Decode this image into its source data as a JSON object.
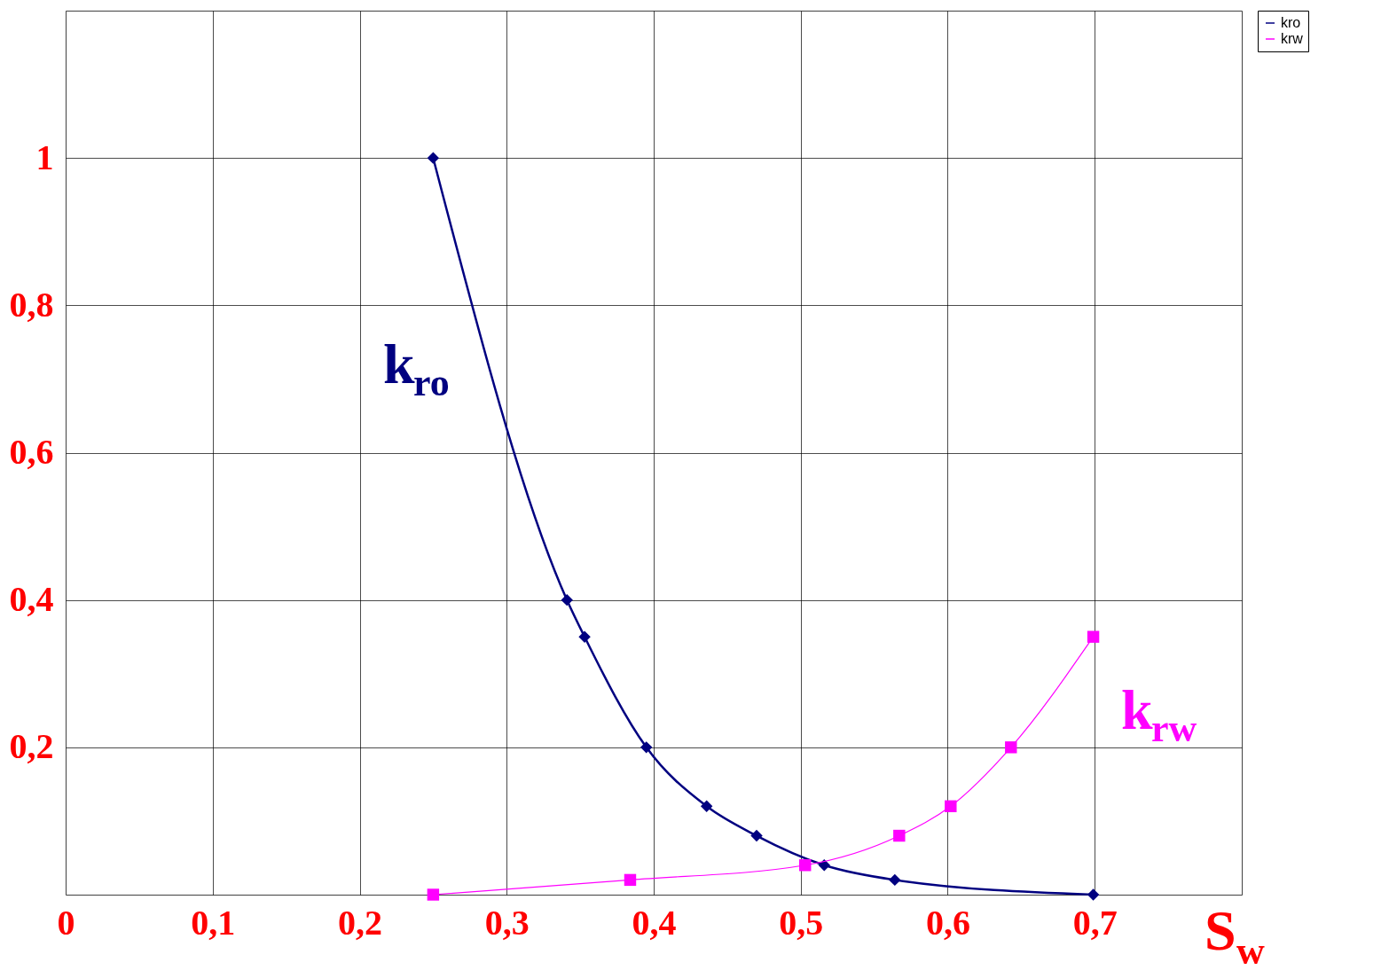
{
  "chart_data": {
    "type": "line",
    "xlabel": "S$_{w}$",
    "xlim": [
      0,
      0.8
    ],
    "xticks": [
      {
        "value": 0,
        "label": "0"
      },
      {
        "value": 0.1,
        "label": "0,1"
      },
      {
        "value": 0.2,
        "label": "0,2"
      },
      {
        "value": 0.3,
        "label": "0,3"
      },
      {
        "value": 0.4,
        "label": "0,4"
      },
      {
        "value": 0.5,
        "label": "0,5"
      },
      {
        "value": 0.6,
        "label": "0,6"
      },
      {
        "value": 0.7,
        "label": "0,7"
      },
      {
        "value": 0.8,
        "label": null
      }
    ],
    "ylim": [
      0,
      1.2
    ],
    "yticks": [
      {
        "value": 0,
        "label": null
      },
      {
        "value": 0.2,
        "label": "0,2"
      },
      {
        "value": 0.4,
        "label": "0,4"
      },
      {
        "value": 0.6,
        "label": "0,6"
      },
      {
        "value": 0.8,
        "label": "0,8"
      },
      1,
      {
        "value": 1.2,
        "label": null
      }
    ],
    "grid": true,
    "legend": "right",
    "series": [
      {
        "name": "kro",
        "color": "#000080",
        "marker": "diamond",
        "x": [
          0.25,
          0.341,
          0.353,
          0.395,
          0.436,
          0.47,
          0.516,
          0.564,
          0.699
        ],
        "values": [
          1,
          0.4,
          0.35,
          0.2,
          0.12,
          0.08,
          0.04,
          0.02,
          0
        ]
      },
      {
        "name": "krw",
        "color": "#ff00ff",
        "marker": "square",
        "x": [
          0.25,
          0.384,
          0.503,
          0.567,
          0.602,
          0.643,
          0.699
        ],
        "values": [
          0,
          0.02,
          0.04,
          0.08,
          0.12,
          0.2,
          0.35
        ]
      }
    ],
    "annotations": [
      "k$_{ro}$",
      "k$_{rw}$"
    ]
  }
}
